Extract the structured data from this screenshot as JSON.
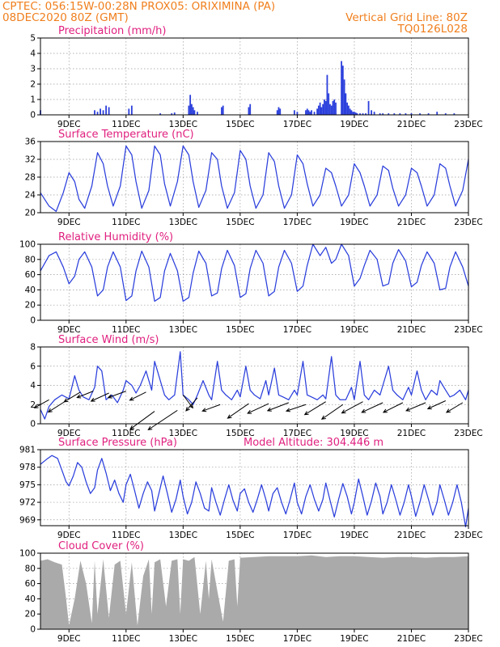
{
  "header": {
    "line1_left": "CPTEC:    056:15W-00:28N   PROX05: ORIXIMINA (PA)",
    "line2_left": "08DEC2020 80Z (GMT)",
    "line2_right": "Vertical Grid Line: 80Z",
    "line3_right": "TQ0126L028"
  },
  "colors": {
    "header": "#f07f1e",
    "panel_title": "#e0207f",
    "series": "#2b3fdc",
    "cloud_fill": "#aaaaaa",
    "grid": "#9a9a9a"
  },
  "chart_data": [
    {
      "id": "precip",
      "type": "bar",
      "title": "Precipitation (mm/h)",
      "xlabel": "",
      "ylabel": "",
      "ylim": [
        0,
        5
      ],
      "yticks": [
        0,
        1,
        2,
        3,
        4,
        5
      ],
      "xticks": [
        "9DEC",
        "11DEC",
        "13DEC",
        "15DEC",
        "17DEC",
        "19DEC",
        "21DEC",
        "23DEC"
      ],
      "grid": true,
      "x_unit": "day of December 2020 (decimal)",
      "x": [
        8.0,
        9.9,
        10.0,
        10.1,
        10.2,
        10.3,
        10.4,
        11.1,
        11.2,
        12.2,
        12.6,
        12.7,
        13.2,
        13.25,
        13.3,
        13.35,
        13.4,
        13.5,
        14.35,
        14.4,
        15.3,
        15.35,
        16.3,
        16.35,
        16.4,
        16.9,
        17.0,
        17.3,
        17.35,
        17.4,
        17.45,
        17.5,
        17.6,
        17.7,
        17.75,
        17.8,
        17.85,
        17.9,
        17.95,
        18.0,
        18.05,
        18.1,
        18.15,
        18.2,
        18.25,
        18.3,
        18.35,
        18.55,
        18.6,
        18.65,
        18.7,
        18.75,
        18.8,
        18.85,
        18.9,
        18.95,
        19.0,
        19.05,
        19.1,
        19.2,
        19.3,
        19.4,
        19.5,
        19.6,
        19.7,
        19.9,
        20.0,
        20.2,
        20.4,
        20.6,
        20.8,
        21.0,
        21.3,
        21.6,
        21.9,
        22.2,
        22.5
      ],
      "values": [
        0.3,
        0.3,
        0.2,
        0.4,
        0.3,
        0.6,
        0.5,
        0.4,
        0.6,
        0.1,
        0.1,
        0.15,
        0.6,
        1.3,
        0.7,
        0.5,
        0.3,
        0.2,
        0.5,
        0.6,
        0.5,
        0.7,
        0.3,
        0.5,
        0.4,
        0.3,
        0.2,
        0.3,
        0.4,
        0.3,
        0.2,
        0.3,
        0.2,
        0.4,
        0.6,
        0.8,
        0.5,
        0.7,
        1.0,
        0.9,
        2.6,
        1.4,
        0.7,
        0.6,
        0.9,
        1.0,
        0.8,
        3.5,
        3.2,
        2.3,
        1.4,
        0.8,
        0.6,
        0.4,
        0.3,
        0.2,
        0.2,
        0.15,
        0.1,
        0.1,
        0.1,
        0.1,
        0.9,
        0.3,
        0.2,
        0.1,
        0.1,
        0.1,
        0.1,
        0.1,
        0.1,
        0.1,
        0.1,
        0.1,
        0.2,
        0.1,
        0.1
      ]
    },
    {
      "id": "temp",
      "type": "line",
      "title": "Surface Temperature (nC)",
      "xlabel": "",
      "ylabel": "",
      "ylim": [
        20,
        36
      ],
      "yticks": [
        20,
        24,
        28,
        32,
        36
      ],
      "xticks": [
        "9DEC",
        "11DEC",
        "13DEC",
        "15DEC",
        "17DEC",
        "19DEC",
        "21DEC",
        "23DEC"
      ],
      "grid": true,
      "x_unit": "day of December 2020 (decimal)",
      "x": [
        8.0,
        8.3,
        8.55,
        8.8,
        9.0,
        9.2,
        9.35,
        9.55,
        9.8,
        10.0,
        10.2,
        10.35,
        10.55,
        10.8,
        11.0,
        11.2,
        11.35,
        11.55,
        11.8,
        12.0,
        12.2,
        12.35,
        12.55,
        12.8,
        13.0,
        13.2,
        13.35,
        13.55,
        13.8,
        14.0,
        14.2,
        14.35,
        14.55,
        14.8,
        15.0,
        15.2,
        15.35,
        15.55,
        15.8,
        16.0,
        16.2,
        16.35,
        16.55,
        16.8,
        17.0,
        17.2,
        17.35,
        17.55,
        17.8,
        18.0,
        18.2,
        18.35,
        18.55,
        18.8,
        19.0,
        19.2,
        19.35,
        19.55,
        19.8,
        20.0,
        20.2,
        20.35,
        20.55,
        20.8,
        21.0,
        21.2,
        21.35,
        21.55,
        21.8,
        22.0,
        22.2,
        22.35,
        22.55,
        22.8,
        23.0
      ],
      "values": [
        24.5,
        21.5,
        20.3,
        24.5,
        29.0,
        27.0,
        23.0,
        21.0,
        26.0,
        33.5,
        31.0,
        26.0,
        21.5,
        26.0,
        35.0,
        33.0,
        27.0,
        21.0,
        25.0,
        35.0,
        33.0,
        26.5,
        21.5,
        27.0,
        35.0,
        33.0,
        27.0,
        21.2,
        25.0,
        33.5,
        32.0,
        26.0,
        21.0,
        24.5,
        34.0,
        32.0,
        26.0,
        21.0,
        24.0,
        33.5,
        31.5,
        26.0,
        21.0,
        24.0,
        33.0,
        31.0,
        26.5,
        21.5,
        24.0,
        30.0,
        29.0,
        26.0,
        21.5,
        24.0,
        31.0,
        29.0,
        26.0,
        21.5,
        24.0,
        30.5,
        29.5,
        25.5,
        21.5,
        24.0,
        30.0,
        29.0,
        26.0,
        21.5,
        24.0,
        31.0,
        30.0,
        26.0,
        21.5,
        25.0,
        32.0
      ]
    },
    {
      "id": "rh",
      "type": "line",
      "title": "Relative Humidity (%)",
      "xlabel": "",
      "ylabel": "",
      "ylim": [
        0,
        100
      ],
      "yticks": [
        0,
        20,
        40,
        60,
        80,
        100
      ],
      "xticks": [
        "9DEC",
        "11DEC",
        "13DEC",
        "15DEC",
        "17DEC",
        "19DEC",
        "21DEC",
        "23DEC"
      ],
      "grid": true,
      "x_unit": "day of December 2020 (decimal)",
      "x": [
        8.0,
        8.3,
        8.55,
        8.8,
        9.0,
        9.2,
        9.35,
        9.55,
        9.8,
        10.0,
        10.2,
        10.35,
        10.55,
        10.8,
        11.0,
        11.2,
        11.35,
        11.55,
        11.8,
        12.0,
        12.2,
        12.35,
        12.55,
        12.8,
        13.0,
        13.2,
        13.35,
        13.55,
        13.8,
        14.0,
        14.2,
        14.35,
        14.55,
        14.8,
        15.0,
        15.2,
        15.35,
        15.55,
        15.8,
        16.0,
        16.2,
        16.35,
        16.55,
        16.8,
        17.0,
        17.2,
        17.35,
        17.55,
        17.8,
        18.0,
        18.2,
        18.35,
        18.55,
        18.8,
        19.0,
        19.2,
        19.35,
        19.55,
        19.8,
        20.0,
        20.2,
        20.35,
        20.55,
        20.8,
        21.0,
        21.2,
        21.35,
        21.55,
        21.8,
        22.0,
        22.2,
        22.35,
        22.55,
        22.8,
        23.0
      ],
      "values": [
        65.0,
        85.0,
        90.0,
        70.0,
        48.0,
        58.0,
        80.0,
        90.0,
        70.0,
        32.0,
        40.0,
        70.0,
        90.0,
        70.0,
        26.0,
        32.0,
        65.0,
        91.0,
        70.0,
        25.0,
        30.0,
        65.0,
        88.0,
        65.0,
        25.0,
        30.0,
        62.0,
        91.0,
        75.0,
        32.0,
        36.0,
        68.0,
        92.0,
        72.0,
        30.0,
        35.0,
        68.0,
        92.0,
        75.0,
        32.0,
        38.0,
        70.0,
        92.0,
        75.0,
        38.0,
        45.0,
        72.0,
        100.0,
        85.0,
        96.0,
        75.0,
        80.0,
        100.0,
        85.0,
        45.0,
        55.0,
        72.0,
        92.0,
        80.0,
        45.0,
        48.0,
        75.0,
        93.0,
        78.0,
        44.0,
        50.0,
        72.0,
        90.0,
        75.0,
        40.0,
        42.0,
        70.0,
        90.0,
        70.0,
        45.0
      ]
    },
    {
      "id": "wind",
      "type": "line",
      "title": "Surface Wind (m/s)",
      "xlabel": "",
      "ylabel": "",
      "ylim": [
        0,
        8
      ],
      "yticks": [
        0,
        2,
        4,
        6,
        8
      ],
      "xticks": [
        "9DEC",
        "11DEC",
        "13DEC",
        "15DEC",
        "17DEC",
        "19DEC",
        "21DEC",
        "23DEC"
      ],
      "grid": true,
      "x_unit": "day of December 2020 (decimal)",
      "x": [
        8.0,
        8.15,
        8.3,
        8.5,
        8.75,
        9.0,
        9.2,
        9.35,
        9.5,
        9.7,
        9.9,
        10.0,
        10.15,
        10.3,
        10.5,
        10.7,
        10.9,
        11.0,
        11.2,
        11.35,
        11.5,
        11.7,
        11.9,
        12.0,
        12.2,
        12.35,
        12.5,
        12.7,
        12.9,
        13.0,
        13.2,
        13.35,
        13.5,
        13.7,
        13.9,
        14.0,
        14.2,
        14.35,
        14.5,
        14.7,
        14.9,
        15.0,
        15.2,
        15.35,
        15.5,
        15.7,
        15.9,
        16.0,
        16.2,
        16.35,
        16.5,
        16.7,
        16.9,
        17.0,
        17.2,
        17.35,
        17.5,
        17.7,
        17.9,
        18.0,
        18.2,
        18.35,
        18.5,
        18.7,
        18.9,
        19.0,
        19.2,
        19.35,
        19.5,
        19.7,
        19.9,
        20.0,
        20.2,
        20.35,
        20.5,
        20.7,
        20.9,
        21.0,
        21.2,
        21.35,
        21.5,
        21.7,
        21.9,
        22.0,
        22.2,
        22.35,
        22.5,
        22.7,
        22.9,
        23.0
      ],
      "values": [
        1.5,
        0.5,
        1.8,
        2.5,
        3.0,
        2.6,
        5.0,
        3.5,
        2.8,
        2.5,
        3.8,
        6.0,
        5.5,
        2.5,
        3.0,
        2.2,
        3.5,
        4.5,
        4.0,
        3.2,
        4.0,
        5.5,
        3.5,
        6.5,
        4.5,
        3.0,
        2.5,
        3.0,
        7.5,
        3.0,
        2.5,
        2.0,
        3.0,
        4.5,
        3.0,
        2.5,
        6.5,
        3.5,
        3.0,
        2.5,
        3.5,
        2.8,
        6.0,
        3.5,
        3.0,
        2.6,
        4.5,
        3.0,
        5.8,
        3.0,
        2.8,
        2.5,
        3.5,
        3.0,
        6.5,
        3.0,
        2.8,
        2.5,
        3.0,
        2.6,
        7.0,
        3.0,
        2.5,
        2.5,
        3.8,
        2.5,
        6.5,
        3.0,
        2.5,
        3.5,
        3.0,
        4.0,
        6.0,
        3.5,
        3.0,
        2.5,
        3.8,
        3.0,
        5.5,
        3.5,
        2.5,
        3.5,
        3.0,
        4.5,
        3.5,
        2.8,
        3.0,
        3.5,
        2.5,
        3.5
      ],
      "vectors": [
        {
          "x": 8.3,
          "y": 2.5,
          "dx": 18,
          "dy": -10
        },
        {
          "x": 8.9,
          "y": 2.4,
          "dx": 22,
          "dy": -14
        },
        {
          "x": 9.4,
          "y": 3.3,
          "dx": 20,
          "dy": -12
        },
        {
          "x": 9.85,
          "y": 3.4,
          "dx": 20,
          "dy": -8
        },
        {
          "x": 10.4,
          "y": 3.2,
          "dx": 22,
          "dy": -10
        },
        {
          "x": 11.0,
          "y": 3.4,
          "dx": 22,
          "dy": -8
        },
        {
          "x": 11.7,
          "y": 3.3,
          "dx": 20,
          "dy": -10
        },
        {
          "x": 12.0,
          "y": 1.3,
          "dx": 30,
          "dy": -22
        },
        {
          "x": 12.8,
          "y": 1.4,
          "dx": 36,
          "dy": -24
        },
        {
          "x": 13.0,
          "y": 3.0,
          "dx": -12,
          "dy": -16
        },
        {
          "x": 13.5,
          "y": 2.7,
          "dx": 14,
          "dy": -16
        },
        {
          "x": 14.3,
          "y": 2.0,
          "dx": 22,
          "dy": -8
        },
        {
          "x": 15.3,
          "y": 2.1,
          "dx": 26,
          "dy": -18
        },
        {
          "x": 16.0,
          "y": 2.1,
          "dx": 26,
          "dy": -12
        },
        {
          "x": 16.7,
          "y": 2.2,
          "dx": 26,
          "dy": -10
        },
        {
          "x": 17.3,
          "y": 2.0,
          "dx": 24,
          "dy": -8
        },
        {
          "x": 18.0,
          "y": 2.3,
          "dx": 26,
          "dy": -16
        },
        {
          "x": 18.6,
          "y": 2.0,
          "dx": 26,
          "dy": -18
        },
        {
          "x": 19.3,
          "y": 2.3,
          "dx": 26,
          "dy": -14
        },
        {
          "x": 20.0,
          "y": 2.2,
          "dx": 26,
          "dy": -12
        },
        {
          "x": 20.7,
          "y": 2.2,
          "dx": 24,
          "dy": -12
        },
        {
          "x": 21.5,
          "y": 2.2,
          "dx": 24,
          "dy": -10
        },
        {
          "x": 22.2,
          "y": 2.4,
          "dx": 22,
          "dy": -10
        },
        {
          "x": 22.8,
          "y": 2.2,
          "dx": 20,
          "dy": -12
        }
      ]
    },
    {
      "id": "pressure",
      "type": "line",
      "title": "Surface Pressure (hPa)",
      "subtitle": "Model Altitude: 304.446  m",
      "xlabel": "",
      "ylabel": "",
      "ylim": [
        968,
        981
      ],
      "yticks": [
        969,
        972,
        975,
        978,
        981
      ],
      "xticks": [
        "9DEC",
        "11DEC",
        "13DEC",
        "15DEC",
        "17DEC",
        "19DEC",
        "21DEC",
        "23DEC"
      ],
      "grid": true,
      "x_unit": "day of December 2020 (decimal)",
      "x": [
        8.0,
        8.2,
        8.4,
        8.6,
        8.75,
        8.9,
        9.0,
        9.15,
        9.3,
        9.45,
        9.6,
        9.75,
        9.9,
        10.0,
        10.15,
        10.3,
        10.45,
        10.6,
        10.75,
        10.9,
        11.0,
        11.15,
        11.3,
        11.45,
        11.6,
        11.75,
        11.9,
        12.0,
        12.15,
        12.3,
        12.45,
        12.6,
        12.75,
        12.9,
        13.0,
        13.15,
        13.3,
        13.45,
        13.6,
        13.75,
        13.9,
        14.0,
        14.15,
        14.3,
        14.45,
        14.6,
        14.75,
        14.9,
        15.0,
        15.15,
        15.3,
        15.45,
        15.6,
        15.75,
        15.9,
        16.0,
        16.15,
        16.3,
        16.45,
        16.6,
        16.75,
        16.9,
        17.0,
        17.15,
        17.3,
        17.45,
        17.6,
        17.75,
        17.9,
        18.0,
        18.15,
        18.3,
        18.45,
        18.6,
        18.75,
        18.9,
        19.0,
        19.15,
        19.3,
        19.45,
        19.6,
        19.75,
        19.9,
        20.0,
        20.15,
        20.3,
        20.45,
        20.6,
        20.75,
        20.9,
        21.0,
        21.15,
        21.3,
        21.45,
        21.6,
        21.75,
        21.9,
        22.0,
        22.15,
        22.3,
        22.45,
        22.6,
        22.75,
        22.9,
        23.0
      ],
      "values": [
        978.5,
        979.3,
        980.0,
        979.5,
        977.5,
        975.5,
        974.8,
        976.5,
        978.8,
        978.0,
        975.5,
        973.5,
        974.5,
        977.5,
        979.5,
        977.0,
        974.0,
        975.8,
        973.5,
        972.0,
        975.0,
        976.8,
        974.0,
        971.0,
        973.5,
        975.5,
        974.0,
        970.5,
        973.5,
        976.5,
        973.5,
        970.3,
        972.5,
        975.8,
        973.0,
        970.0,
        972.0,
        975.5,
        973.5,
        971.0,
        970.5,
        974.5,
        972.0,
        969.8,
        972.5,
        975.0,
        972.3,
        970.5,
        973.5,
        974.3,
        972.0,
        970.3,
        972.5,
        975.0,
        972.5,
        970.5,
        973.5,
        974.5,
        972.0,
        970.0,
        972.5,
        975.3,
        972.0,
        970.0,
        973.0,
        975.0,
        972.5,
        970.5,
        972.5,
        975.3,
        972.3,
        969.5,
        972.5,
        975.2,
        973.0,
        970.0,
        972.0,
        976.0,
        973.0,
        969.8,
        972.2,
        975.3,
        973.0,
        970.0,
        972.0,
        975.0,
        972.5,
        969.8,
        972.0,
        975.0,
        973.0,
        969.6,
        972.0,
        975.0,
        972.5,
        969.8,
        972.0,
        975.0,
        972.5,
        969.8,
        972.0,
        975.0,
        972.0,
        967.8,
        971.0
      ]
    },
    {
      "id": "cloud",
      "type": "area",
      "title": "Cloud Cover (%)",
      "xlabel": "",
      "ylabel": "",
      "ylim": [
        0,
        100
      ],
      "yticks": [
        0,
        20,
        40,
        60,
        80,
        100
      ],
      "xticks": [
        "9DEC",
        "11DEC",
        "13DEC",
        "15DEC",
        "17DEC",
        "19DEC",
        "21DEC",
        "23DEC"
      ],
      "grid": true,
      "x_unit": "day of December 2020 (decimal)",
      "x": [
        8.0,
        8.25,
        8.5,
        8.75,
        8.9,
        9.0,
        9.2,
        9.4,
        9.6,
        9.8,
        9.9,
        10.0,
        10.2,
        10.4,
        10.6,
        10.8,
        11.0,
        11.2,
        11.4,
        11.6,
        11.8,
        11.9,
        12.0,
        12.2,
        12.4,
        12.6,
        12.8,
        12.9,
        13.0,
        13.2,
        13.4,
        13.6,
        13.8,
        13.9,
        14.0,
        14.2,
        14.4,
        14.6,
        14.8,
        14.9,
        15.0,
        15.5,
        16.0,
        16.5,
        17.0,
        17.5,
        18.0,
        18.5,
        19.0,
        19.5,
        20.0,
        20.5,
        21.0,
        21.5,
        22.0,
        22.5,
        23.0
      ],
      "values": [
        90,
        92,
        88,
        85,
        40,
        5,
        40,
        90,
        60,
        8,
        90,
        20,
        92,
        15,
        85,
        90,
        20,
        88,
        5,
        70,
        92,
        20,
        88,
        92,
        30,
        90,
        92,
        20,
        92,
        90,
        95,
        20,
        90,
        40,
        92,
        50,
        10,
        90,
        92,
        30,
        94,
        95,
        96,
        96,
        96,
        97,
        95,
        96,
        96,
        95,
        94,
        95,
        95,
        94,
        95,
        95,
        96
      ]
    }
  ]
}
